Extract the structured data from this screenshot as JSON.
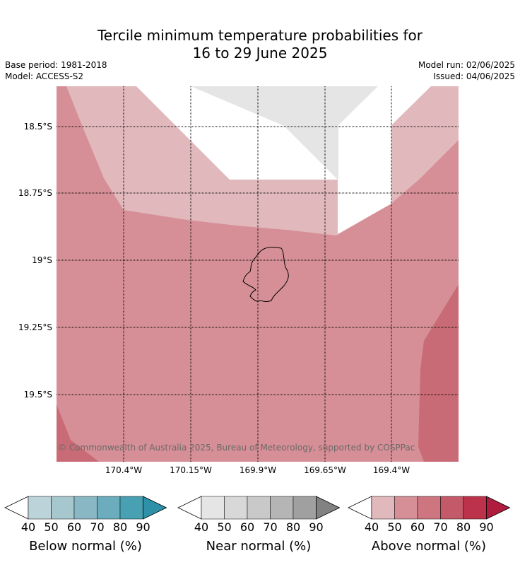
{
  "title": {
    "line1": "Tercile minimum temperature probabilities for",
    "line2": "16 to 29 June 2025"
  },
  "meta": {
    "base_period": "Base period: 1981-2018",
    "model": "Model: ACCESS-S2",
    "model_run": "Model run: 02/06/2025",
    "issued": "Issued: 04/06/2025"
  },
  "map": {
    "lat_labels": [
      "18.5°S",
      "18.75°S",
      "19°S",
      "19.25°S",
      "19.5°S"
    ],
    "lon_labels": [
      "170.4°W",
      "170.15°W",
      "169.9°W",
      "169.65°W",
      "169.4°W"
    ],
    "copyright": "© Commonwealth of Australia 2025, Bureau of Meteorology, supported by COSPPac",
    "category_colors": {
      "above_40_50": "#e1b9bd",
      "above_50_60": "#d68f96",
      "above_60_70": "#c96b76",
      "near_40_50": "#e5e5e5",
      "background": "#ffffff"
    }
  },
  "colorbars": [
    {
      "title": "Below normal (%)",
      "ticks": [
        "40",
        "50",
        "60",
        "70",
        "80",
        "90"
      ],
      "colors": [
        "#ffffff",
        "#bdd3da",
        "#a5c7cd",
        "#89b7c3",
        "#6bacbd",
        "#48a0b3",
        "#2e91a7"
      ]
    },
    {
      "title": "Near normal (%)",
      "ticks": [
        "40",
        "50",
        "60",
        "70",
        "80",
        "90"
      ],
      "colors": [
        "#ffffff",
        "#e5e5e5",
        "#d8d8d8",
        "#c9c9c9",
        "#b5b5b5",
        "#a0a0a0",
        "#828282"
      ]
    },
    {
      "title": "Above normal (%)",
      "ticks": [
        "40",
        "50",
        "60",
        "70",
        "80",
        "90"
      ],
      "colors": [
        "#ffffff",
        "#e1b9bd",
        "#d68f96",
        "#cd7680",
        "#c35969",
        "#bc324b",
        "#b01c3e"
      ]
    }
  ]
}
